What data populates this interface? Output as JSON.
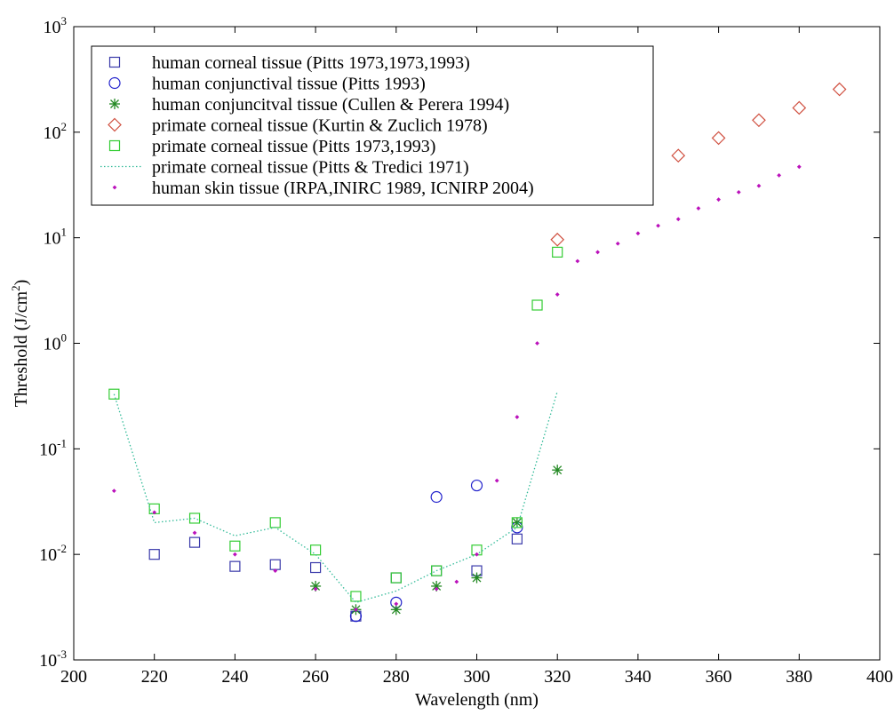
{
  "chart_data": {
    "type": "scatter",
    "title": "",
    "xlabel": "Wavelength (nm)",
    "ylabel": "Threshold (J/cm",
    "ylabel_sup": "2",
    "ylabel_close": ")",
    "xlim": [
      200,
      400
    ],
    "ylim": [
      0.001,
      1000
    ],
    "yscale": "log",
    "xticks": [
      200,
      220,
      240,
      260,
      280,
      300,
      320,
      340,
      360,
      380,
      400
    ],
    "yticks": [
      {
        "base": "10",
        "exp": "-3",
        "value": 0.001
      },
      {
        "base": "10",
        "exp": "-2",
        "value": 0.01
      },
      {
        "base": "10",
        "exp": "-1",
        "value": 0.1
      },
      {
        "base": "10",
        "exp": "0",
        "value": 1
      },
      {
        "base": "10",
        "exp": "1",
        "value": 10
      },
      {
        "base": "10",
        "exp": "2",
        "value": 100
      },
      {
        "base": "10",
        "exp": "3",
        "value": 1000
      }
    ],
    "grid": false,
    "legend_position": "top-left",
    "series": [
      {
        "name": "human corneal tissue (Pitts 1973,1973,1993)",
        "marker": "square",
        "color": "#3a3aaa",
        "x": [
          220,
          230,
          240,
          250,
          260,
          270,
          280,
          290,
          300,
          310
        ],
        "y": [
          0.01,
          0.013,
          0.0077,
          0.008,
          0.0075,
          0.0026,
          0.006,
          0.007,
          0.007,
          0.014
        ]
      },
      {
        "name": "human conjunctival tissue (Pitts 1993)",
        "marker": "circle",
        "color": "#2222cc",
        "x": [
          270,
          280,
          290,
          300,
          310
        ],
        "y": [
          0.0026,
          0.0035,
          0.035,
          0.045,
          0.018
        ]
      },
      {
        "name": "human conjuncitval tissue (Cullen & Perera 1994)",
        "marker": "asterisk",
        "color": "#228822",
        "x": [
          260,
          270,
          280,
          290,
          300,
          310,
          320
        ],
        "y": [
          0.005,
          0.003,
          0.003,
          0.005,
          0.006,
          0.02,
          0.063
        ]
      },
      {
        "name": "primate corneal tissue (Kurtin & Zuclich 1978)",
        "marker": "diamond",
        "color": "#d05040",
        "x": [
          320,
          350,
          360,
          370,
          380,
          390
        ],
        "y": [
          9.6,
          60,
          88,
          130,
          170,
          255
        ]
      },
      {
        "name": "primate corneal tissue (Pitts 1973,1993)",
        "marker": "square",
        "color": "#33cc33",
        "x": [
          210,
          220,
          230,
          240,
          250,
          260,
          270,
          280,
          290,
          300,
          310,
          315,
          320
        ],
        "y": [
          0.33,
          0.027,
          0.022,
          0.012,
          0.02,
          0.011,
          0.004,
          0.006,
          0.007,
          0.011,
          0.02,
          2.3,
          7.3
        ]
      },
      {
        "name": "primate corneal tissue (Pitts & Tredici 1971)",
        "marker": "dotted-line",
        "color": "#33bb99",
        "x": [
          210,
          220,
          230,
          240,
          250,
          260,
          270,
          280,
          290,
          300,
          310,
          320
        ],
        "y": [
          0.33,
          0.02,
          0.022,
          0.015,
          0.018,
          0.01,
          0.0035,
          0.0045,
          0.007,
          0.01,
          0.018,
          0.35
        ]
      },
      {
        "name": "human skin tissue  (IRPA,INIRC 1989, ICNIRP 2004)",
        "marker": "dot",
        "color": "#bb11bb",
        "x": [
          210,
          220,
          230,
          240,
          250,
          260,
          270,
          280,
          290,
          295,
          300,
          305,
          310,
          315,
          320,
          325,
          330,
          335,
          340,
          345,
          350,
          355,
          360,
          365,
          370,
          375,
          380
        ],
        "y": [
          0.04,
          0.025,
          0.016,
          0.01,
          0.007,
          0.0047,
          0.003,
          0.0034,
          0.0047,
          0.0055,
          0.01,
          0.05,
          0.2,
          1.0,
          2.9,
          6.0,
          7.3,
          8.8,
          11,
          13,
          15,
          19,
          23,
          27,
          31,
          39,
          47
        ]
      }
    ]
  }
}
